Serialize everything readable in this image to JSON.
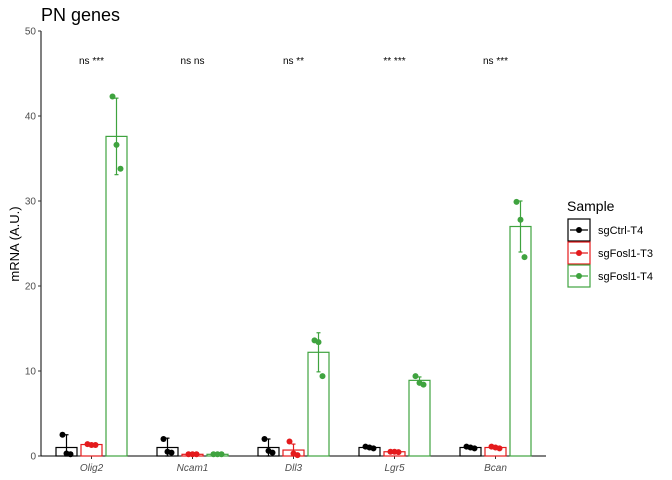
{
  "chart_data": {
    "type": "bar",
    "title": "PN genes",
    "xlabel": "",
    "ylabel": "mRNA (A.U.)",
    "ylim": [
      0,
      50
    ],
    "yticks": [
      0,
      10,
      20,
      30,
      40,
      50
    ],
    "grid": false,
    "legend_position": "right",
    "legend_title": "Sample",
    "categories": [
      "Olig2",
      "Ncam1",
      "Dll3",
      "Lgr5",
      "Bcan"
    ],
    "significance": [
      "ns ***",
      "ns ns",
      "ns **",
      "** ***",
      "ns ***"
    ],
    "series": [
      {
        "name": "sgCtrl-T4",
        "color": "#000000",
        "values": [
          1.0,
          1.0,
          1.0,
          1.0,
          1.0
        ],
        "errors": [
          1.5,
          1.1,
          1.0,
          0.1,
          0.1
        ],
        "points": [
          [
            2.5,
            0.3,
            0.2
          ],
          [
            2.0,
            0.5,
            0.4
          ],
          [
            2.0,
            0.6,
            0.4
          ],
          [
            1.1,
            1.0,
            0.9
          ],
          [
            1.1,
            1.0,
            0.9
          ]
        ]
      },
      {
        "name": "sgFosl1-T3",
        "color": "#e41a1c",
        "values": [
          1.35,
          0.2,
          0.7,
          0.5,
          1.0
        ],
        "errors": [
          0.1,
          0.05,
          0.7,
          0.05,
          0.1
        ],
        "points": [
          [
            1.4,
            1.3,
            1.3
          ],
          [
            0.2,
            0.2,
            0.2
          ],
          [
            1.7,
            0.3,
            0.1
          ],
          [
            0.5,
            0.5,
            0.45
          ],
          [
            1.1,
            1.0,
            0.9
          ]
        ]
      },
      {
        "name": "sgFosl1-T4",
        "color": "#3fa33f",
        "values": [
          37.6,
          0.2,
          12.2,
          8.9,
          27.0
        ],
        "errors": [
          4.5,
          0.05,
          2.3,
          0.4,
          3.0
        ],
        "points": [
          [
            42.3,
            36.6,
            33.8
          ],
          [
            0.2,
            0.2,
            0.2
          ],
          [
            13.6,
            13.4,
            9.4
          ],
          [
            9.4,
            8.6,
            8.4
          ],
          [
            29.9,
            27.8,
            23.4
          ]
        ]
      }
    ]
  }
}
